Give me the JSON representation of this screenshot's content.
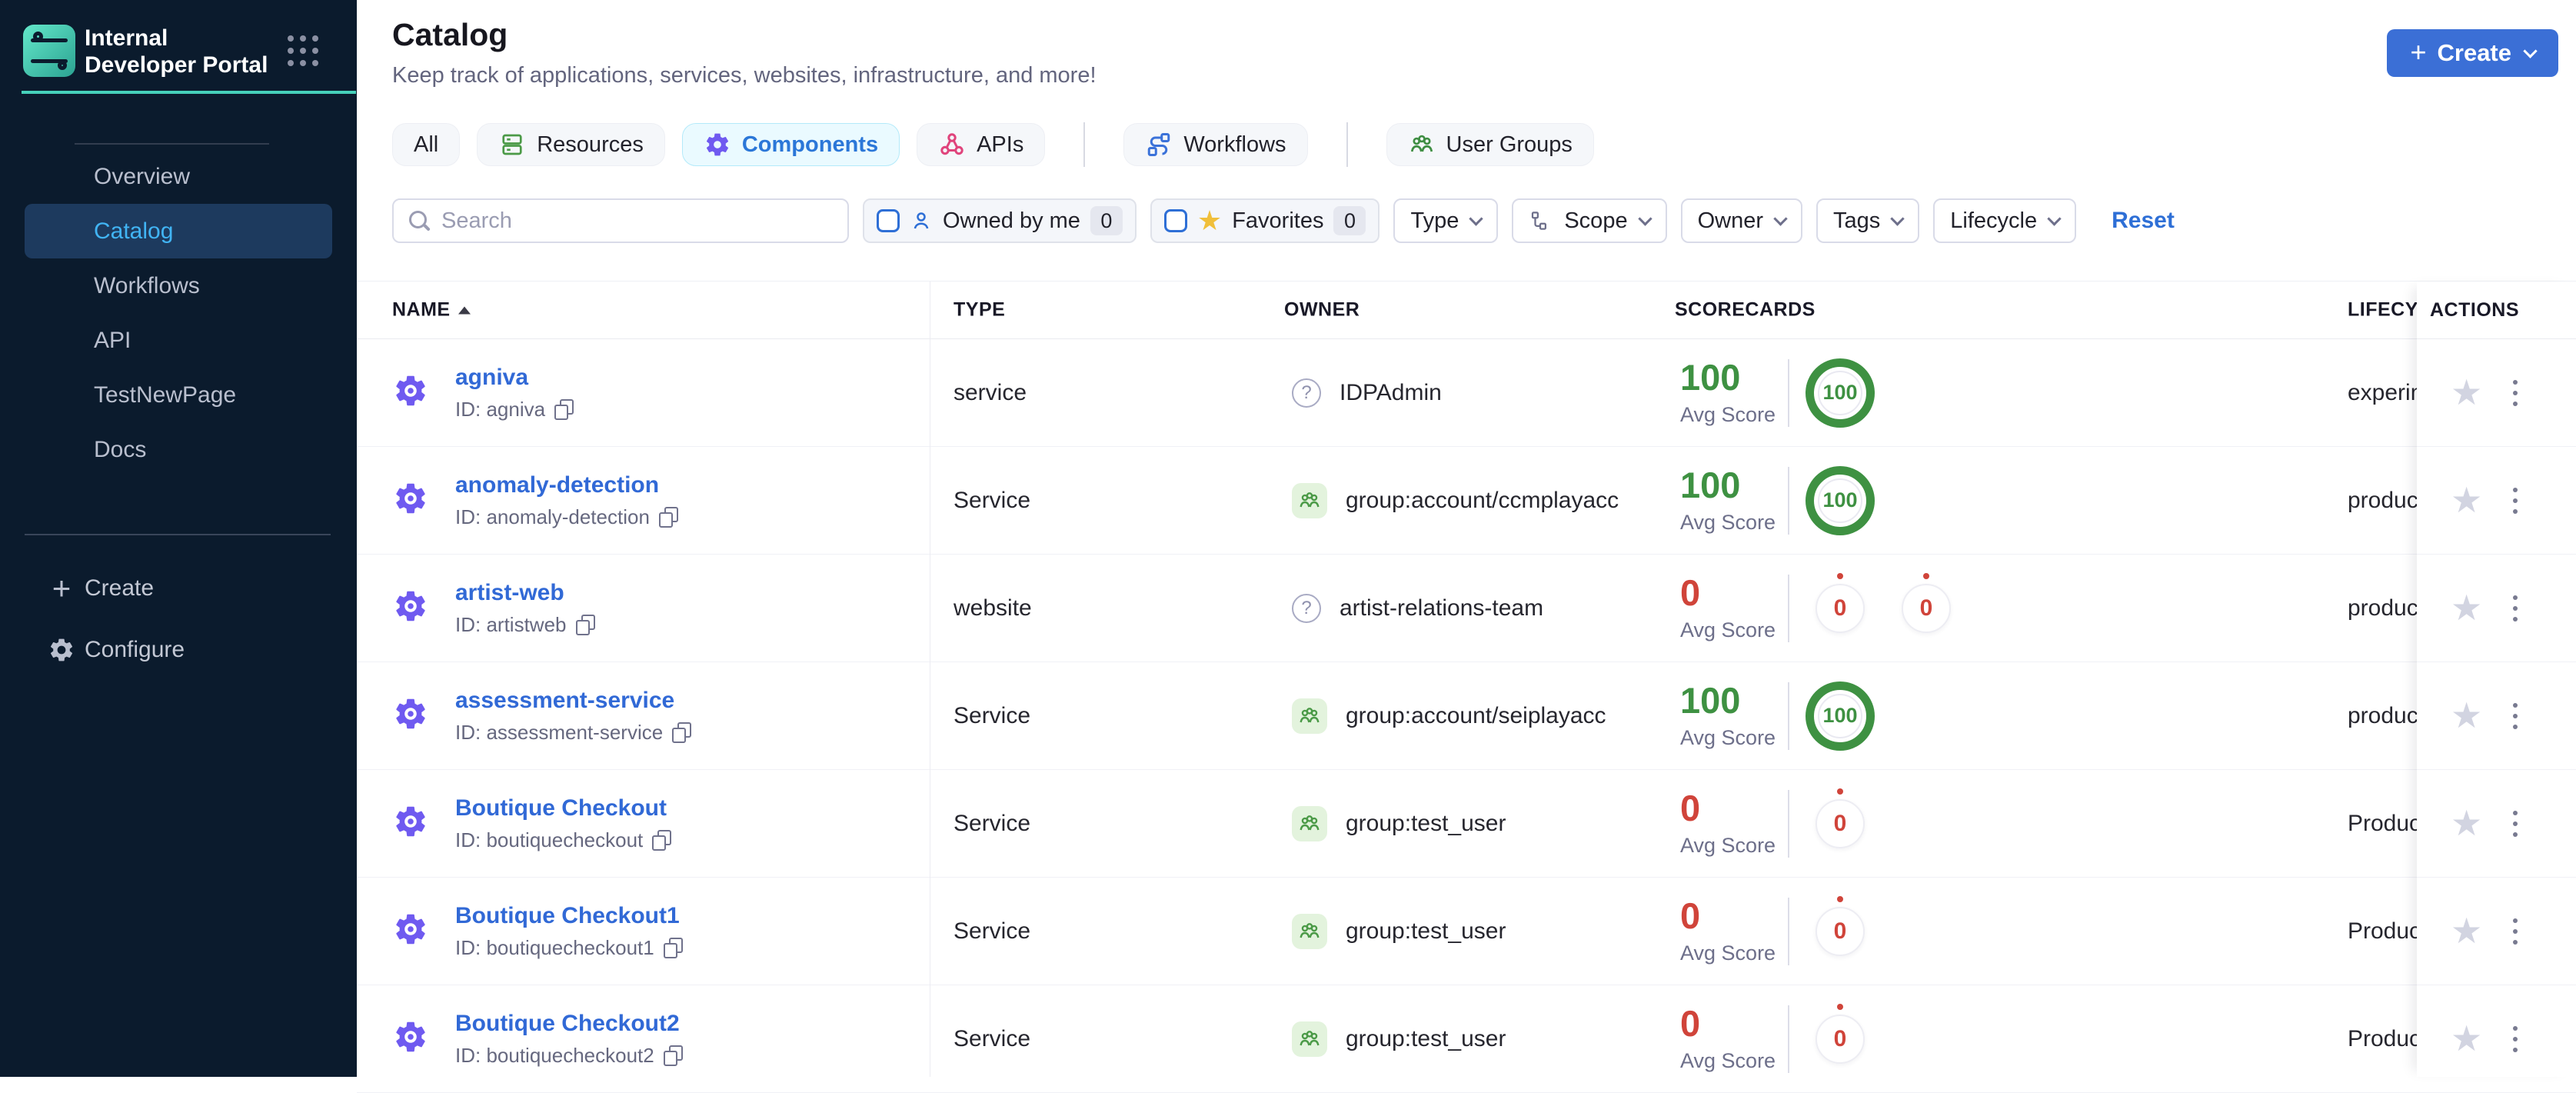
{
  "colors": {
    "sidebar_bg": "#0b1b2d",
    "sidebar_active_text": "#41b4f4",
    "teal_accent": "#46d1ba",
    "primary_button": "#3b6fd6",
    "link_blue": "#3169d6",
    "score_green": "#3e9142",
    "score_red": "#d0443a",
    "tab_active_bg": "#eafaff",
    "group_icon_green": "#4b9a47"
  },
  "sidebar": {
    "title": "Internal Developer Portal",
    "nav": [
      {
        "label": "Overview",
        "active": false
      },
      {
        "label": "Catalog",
        "active": true
      },
      {
        "label": "Workflows",
        "active": false
      },
      {
        "label": "API",
        "active": false
      },
      {
        "label": "TestNewPage",
        "active": false
      },
      {
        "label": "Docs",
        "active": false
      }
    ],
    "footer_create_label": "Create",
    "footer_configure_label": "Configure"
  },
  "header": {
    "title": "Catalog",
    "subtitle": "Keep track of applications, services, websites, infrastructure, and more!",
    "create_label": "Create"
  },
  "tabs": [
    {
      "label": "All",
      "icon": "",
      "active": false,
      "divider_after": false
    },
    {
      "label": "Resources",
      "icon": "resources-icon",
      "active": false,
      "divider_after": false
    },
    {
      "label": "Components",
      "icon": "components-icon",
      "active": true,
      "divider_after": false
    },
    {
      "label": "APIs",
      "icon": "apis-icon",
      "active": false,
      "divider_after": true
    },
    {
      "label": "Workflows",
      "icon": "workflows-icon",
      "active": false,
      "divider_after": true
    },
    {
      "label": "User Groups",
      "icon": "user-groups-icon",
      "active": false,
      "divider_after": false
    }
  ],
  "filters": {
    "search_placeholder": "Search",
    "owned_by_me": {
      "label": "Owned by me",
      "count": "0"
    },
    "favorites": {
      "label": "Favorites",
      "count": "0"
    },
    "dropdowns": [
      {
        "label": "Type",
        "icon": ""
      },
      {
        "label": "Scope",
        "icon": "scope-icon"
      },
      {
        "label": "Owner",
        "icon": ""
      },
      {
        "label": "Tags",
        "icon": ""
      },
      {
        "label": "Lifecycle",
        "icon": ""
      }
    ],
    "reset_label": "Reset"
  },
  "table": {
    "columns": [
      "NAME",
      "TYPE",
      "OWNER",
      "SCORECARDS",
      "LIFECYCLE",
      "ACTIONS"
    ],
    "avg_score_label": "Avg Score",
    "rows": [
      {
        "name": "agniva",
        "id": "ID: agniva",
        "type": "service",
        "owner": "IDPAdmin",
        "owner_kind": "user",
        "avg_score": "100",
        "score_state": "good",
        "badges": [
          {
            "value": "100",
            "state": "good"
          }
        ],
        "lifecycle": "experimental"
      },
      {
        "name": "anomaly-detection",
        "id": "ID: anomaly-detection",
        "type": "Service",
        "owner": "group:account/ccmplayacc",
        "owner_kind": "group",
        "avg_score": "100",
        "score_state": "good",
        "badges": [
          {
            "value": "100",
            "state": "good"
          }
        ],
        "lifecycle": "production"
      },
      {
        "name": "artist-web",
        "id": "ID: artistweb",
        "type": "website",
        "owner": "artist-relations-team",
        "owner_kind": "user",
        "avg_score": "0",
        "score_state": "bad",
        "badges": [
          {
            "value": "0",
            "state": "bad"
          },
          {
            "value": "0",
            "state": "bad"
          }
        ],
        "lifecycle": "production"
      },
      {
        "name": "assessment-service",
        "id": "ID: assessment-service",
        "type": "Service",
        "owner": "group:account/seiplayacc",
        "owner_kind": "group",
        "avg_score": "100",
        "score_state": "good",
        "badges": [
          {
            "value": "100",
            "state": "good"
          }
        ],
        "lifecycle": "production"
      },
      {
        "name": "Boutique Checkout",
        "id": "ID: boutiquecheckout",
        "type": "Service",
        "owner": "group:test_user",
        "owner_kind": "group",
        "avg_score": "0",
        "score_state": "bad",
        "badges": [
          {
            "value": "0",
            "state": "bad"
          }
        ],
        "lifecycle": "Production"
      },
      {
        "name": "Boutique Checkout1",
        "id": "ID: boutiquecheckout1",
        "type": "Service",
        "owner": "group:test_user",
        "owner_kind": "group",
        "avg_score": "0",
        "score_state": "bad",
        "badges": [
          {
            "value": "0",
            "state": "bad"
          }
        ],
        "lifecycle": "Production"
      },
      {
        "name": "Boutique Checkout2",
        "id": "ID: boutiquecheckout2",
        "type": "Service",
        "owner": "group:test_user",
        "owner_kind": "group",
        "avg_score": "0",
        "score_state": "bad",
        "badges": [
          {
            "value": "0",
            "state": "bad"
          }
        ],
        "lifecycle": "Production"
      }
    ]
  }
}
